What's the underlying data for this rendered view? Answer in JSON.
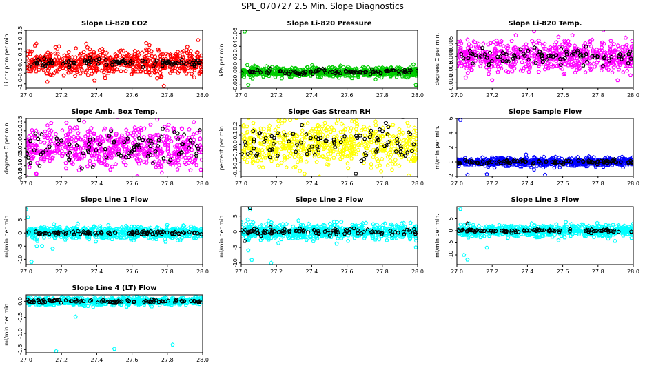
{
  "figure_title": "SPL_070727  2.5 Min. Slope Diagnostics",
  "chart_data": [
    {
      "type": "scatter",
      "title": "Slope Li-820 CO2",
      "ylabel": "Li cor ppm per min.",
      "xlim": [
        27.0,
        28.0
      ],
      "ylim": [
        -1.2,
        1.5
      ],
      "xticks": [
        "27.0",
        "27.2",
        "27.4",
        "27.6",
        "27.8",
        "28.0"
      ],
      "yticks": [
        "-1.5",
        "-1.0",
        "-0.5",
        "0.0",
        "0.5",
        "1.0",
        "1.5"
      ],
      "series": [
        {
          "color": "#ff0000",
          "spread": 0.28,
          "outliers": [
            [
              27.12,
              -0.9
            ],
            [
              27.78,
              -1.1
            ],
            [
              27.68,
              0.9
            ]
          ]
        },
        {
          "color": "#000000",
          "spread": 0.1,
          "outliers": []
        }
      ]
    },
    {
      "type": "scatter",
      "title": "Slope Li-820 Pressure",
      "ylabel": "kPa per min.",
      "xlim": [
        27.0,
        28.0
      ],
      "ylim": [
        -0.025,
        0.065
      ],
      "xticks": [
        "27.0",
        "27.2",
        "27.4",
        "27.6",
        "27.8",
        "28.0"
      ],
      "yticks": [
        "-0.02",
        "0.00",
        "0.02",
        "0.04",
        "0.06"
      ],
      "series": [
        {
          "color": "#00cc00",
          "spread": 0.004,
          "outliers": [
            [
              27.02,
              0.063
            ],
            [
              27.04,
              -0.02
            ],
            [
              27.99,
              -0.02
            ]
          ]
        },
        {
          "color": "#000000",
          "spread": 0.002,
          "outliers": []
        }
      ]
    },
    {
      "type": "scatter",
      "title": "Slope Li-820 Temp.",
      "ylabel": "degrees C per min.",
      "xlim": [
        27.0,
        28.0
      ],
      "ylim": [
        -0.012,
        0.01
      ],
      "xticks": [
        "27.0",
        "27.2",
        "27.4",
        "27.6",
        "27.8",
        "28.0"
      ],
      "yticks": [
        "-0.010",
        "-0.005",
        "0.000",
        "0.005"
      ],
      "series": [
        {
          "color": "#ff00ff",
          "spread": 0.003,
          "outliers": [
            [
              27.05,
              -0.008
            ],
            [
              27.2,
              -0.009
            ],
            [
              27.83,
              0.01
            ]
          ]
        },
        {
          "color": "#000000",
          "spread": 0.0015,
          "outliers": []
        }
      ]
    },
    {
      "type": "scatter",
      "title": "Slope Amb. Box Temp.",
      "ylabel": "degrees C per min.",
      "xlim": [
        27.0,
        28.0
      ],
      "ylim": [
        -0.16,
        0.17
      ],
      "xticks": [
        "27.0",
        "27.2",
        "27.4",
        "27.6",
        "27.8",
        "28.0"
      ],
      "yticks": [
        "-0.15",
        "-0.10",
        "-0.05",
        "0.00",
        "0.05",
        "0.10",
        "0.15"
      ],
      "series": [
        {
          "color": "#ff00ff",
          "spread": 0.06,
          "outliers": [
            [
              27.63,
              -0.16
            ],
            [
              27.95,
              0.15
            ]
          ]
        },
        {
          "color": "#000000",
          "spread": 0.05,
          "outliers": [
            [
              27.3,
              0.16
            ]
          ]
        }
      ]
    },
    {
      "type": "scatter",
      "title": "Slope Gas Stream RH",
      "ylabel": "percent per min.",
      "xlim": [
        27.0,
        28.0
      ],
      "ylim": [
        -0.35,
        0.28
      ],
      "xticks": [
        "27.0",
        "27.2",
        "27.4",
        "27.6",
        "27.8",
        "28.0"
      ],
      "yticks": [
        "-0.3",
        "-0.2",
        "-0.1",
        "0.0",
        "0.1",
        "0.2"
      ],
      "series": [
        {
          "color": "#ffff00",
          "spread": 0.12,
          "outliers": [
            [
              27.95,
              -0.34
            ]
          ]
        },
        {
          "color": "#000000",
          "spread": 0.1,
          "outliers": [
            [
              27.65,
              -0.32
            ]
          ]
        }
      ]
    },
    {
      "type": "scatter",
      "title": "Slope Sample Flow",
      "ylabel": "ml/min per min.",
      "xlim": [
        27.0,
        28.0
      ],
      "ylim": [
        -2.0,
        6.0
      ],
      "xticks": [
        "27.0",
        "27.2",
        "27.4",
        "27.6",
        "27.8",
        "28.0"
      ],
      "yticks": [
        "-2",
        "0",
        "2",
        "4",
        "6"
      ],
      "series": [
        {
          "color": "#0000ff",
          "spread": 0.3,
          "outliers": [
            [
              27.02,
              5.8
            ],
            [
              27.06,
              -1.8
            ],
            [
              27.17,
              -1.7
            ],
            [
              27.5,
              -1.8
            ]
          ]
        },
        {
          "color": "#000000",
          "spread": 0.15,
          "outliers": []
        }
      ]
    },
    {
      "type": "scatter",
      "title": "Slope Line 1 Flow",
      "ylabel": "ml/min per min.",
      "xlim": [
        27.0,
        28.0
      ],
      "ylim": [
        -12,
        10
      ],
      "xticks": [
        "27.0",
        "27.2",
        "27.4",
        "27.6",
        "27.8",
        "28.0"
      ],
      "yticks": [
        "-10",
        "-5",
        "0",
        "5"
      ],
      "series": [
        {
          "color": "#00ffff",
          "spread": 1.2,
          "outliers": [
            [
              27.0,
              9
            ],
            [
              27.01,
              6
            ],
            [
              27.03,
              -11
            ],
            [
              27.06,
              -5
            ],
            [
              27.09,
              -5
            ],
            [
              27.15,
              -6
            ]
          ]
        },
        {
          "color": "#000000",
          "spread": 0.3,
          "outliers": []
        }
      ]
    },
    {
      "type": "scatter",
      "title": "Slope Line 2 Flow",
      "ylabel": "ml/min per min.",
      "xlim": [
        27.0,
        28.0
      ],
      "ylim": [
        -10.5,
        8
      ],
      "xticks": [
        "27.0",
        "27.2",
        "27.4",
        "27.6",
        "27.8",
        "28.0"
      ],
      "yticks": [
        "-10",
        "-5",
        "0",
        "5"
      ],
      "series": [
        {
          "color": "#00ffff",
          "spread": 1.2,
          "outliers": [
            [
              27.05,
              7
            ],
            [
              27.04,
              -6
            ],
            [
              27.06,
              -9
            ],
            [
              27.17,
              -10
            ],
            [
              27.0,
              3
            ],
            [
              27.99,
              -5
            ]
          ]
        },
        {
          "color": "#000000",
          "spread": 0.5,
          "outliers": [
            [
              27.05,
              7.5
            ],
            [
              27.02,
              -3
            ]
          ]
        }
      ]
    },
    {
      "type": "scatter",
      "title": "Slope Line 3 Flow",
      "ylabel": "ml/min per min.",
      "xlim": [
        27.0,
        28.0
      ],
      "ylim": [
        -14,
        10
      ],
      "xticks": [
        "27.0",
        "27.2",
        "27.4",
        "27.6",
        "27.8",
        "28.0"
      ],
      "yticks": [
        "-10",
        "-5",
        "0",
        "5"
      ],
      "series": [
        {
          "color": "#00ffff",
          "spread": 1.2,
          "outliers": [
            [
              27.02,
              9
            ],
            [
              27.04,
              -10
            ],
            [
              27.06,
              -12
            ],
            [
              27.17,
              -7
            ],
            [
              27.07,
              3
            ],
            [
              27.99,
              -3
            ]
          ]
        },
        {
          "color": "#000000",
          "spread": 0.3,
          "outliers": [
            [
              27.06,
              3
            ]
          ]
        }
      ]
    },
    {
      "type": "scatter",
      "title": "Slope Line 4 (LT) Flow",
      "ylabel": "ml/min per min.",
      "xlim": [
        27.0,
        28.0
      ],
      "ylim": [
        -1.6,
        0.2
      ],
      "xticks": [
        "27.0",
        "27.2",
        "27.4",
        "27.6",
        "27.8",
        "28.0"
      ],
      "yticks": [
        "-1.5",
        "-1.0",
        "-0.5",
        "0.0"
      ],
      "series": [
        {
          "color": "#00ffff",
          "spread": 0.06,
          "outliers": [
            [
              27.0,
              0.18
            ],
            [
              27.01,
              0.1
            ],
            [
              27.5,
              -1.48
            ],
            [
              27.83,
              -1.35
            ],
            [
              27.28,
              -0.48
            ],
            [
              27.17,
              -1.55
            ]
          ]
        },
        {
          "color": "#000000",
          "spread": 0.03,
          "outliers": []
        }
      ]
    }
  ]
}
